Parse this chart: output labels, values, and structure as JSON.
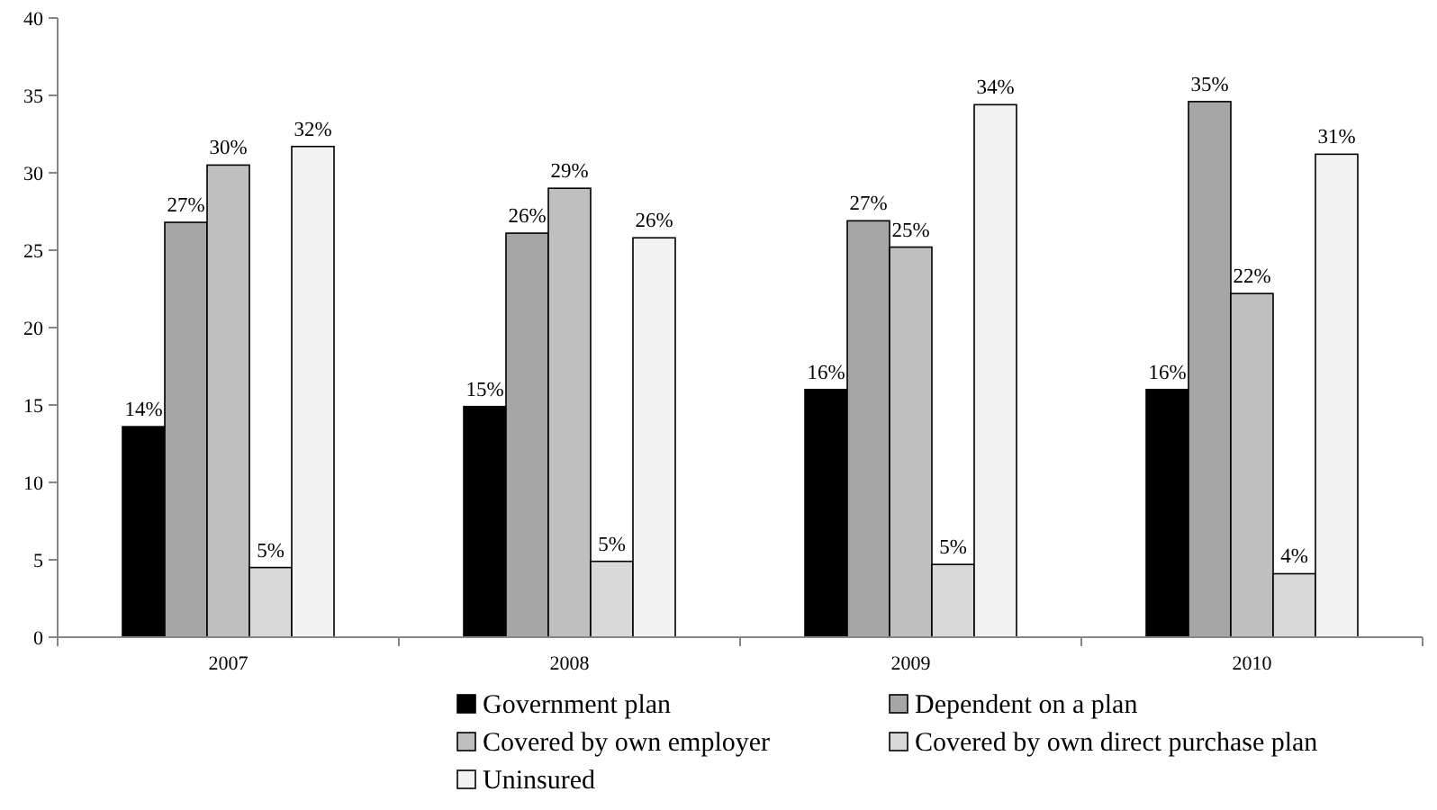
{
  "chart_data": {
    "type": "bar",
    "categories": [
      "2007",
      "2008",
      "2009",
      "2010"
    ],
    "series": [
      {
        "name": "Government plan",
        "color": "#000000",
        "values": [
          13.6,
          14.9,
          16.0,
          16.0
        ],
        "value_labels": [
          "14%",
          "15%",
          "16%",
          "16%"
        ]
      },
      {
        "name": "Dependent on a plan",
        "color": "#a6a6a6",
        "values": [
          26.8,
          26.1,
          26.9,
          34.6
        ],
        "value_labels": [
          "27%",
          "26%",
          "27%",
          "35%"
        ]
      },
      {
        "name": "Covered by own employer",
        "color": "#bfbfbf",
        "values": [
          30.5,
          29.0,
          25.2,
          22.2
        ],
        "value_labels": [
          "30%",
          "29%",
          "25%",
          "22%"
        ]
      },
      {
        "name": "Covered by own direct purchase plan",
        "color": "#d9d9d9",
        "values": [
          4.5,
          4.9,
          4.7,
          4.1
        ],
        "value_labels": [
          "5%",
          "5%",
          "5%",
          "4%"
        ]
      },
      {
        "name": "Uninsured",
        "color": "#f2f2f2",
        "values": [
          31.7,
          25.8,
          34.4,
          31.2
        ],
        "value_labels": [
          "32%",
          "26%",
          "34%",
          "31%"
        ]
      }
    ],
    "ylim": [
      0,
      40
    ],
    "yticks": [
      0,
      5,
      10,
      15,
      20,
      25,
      30,
      35,
      40
    ],
    "grid": false,
    "legend": "bottom"
  }
}
